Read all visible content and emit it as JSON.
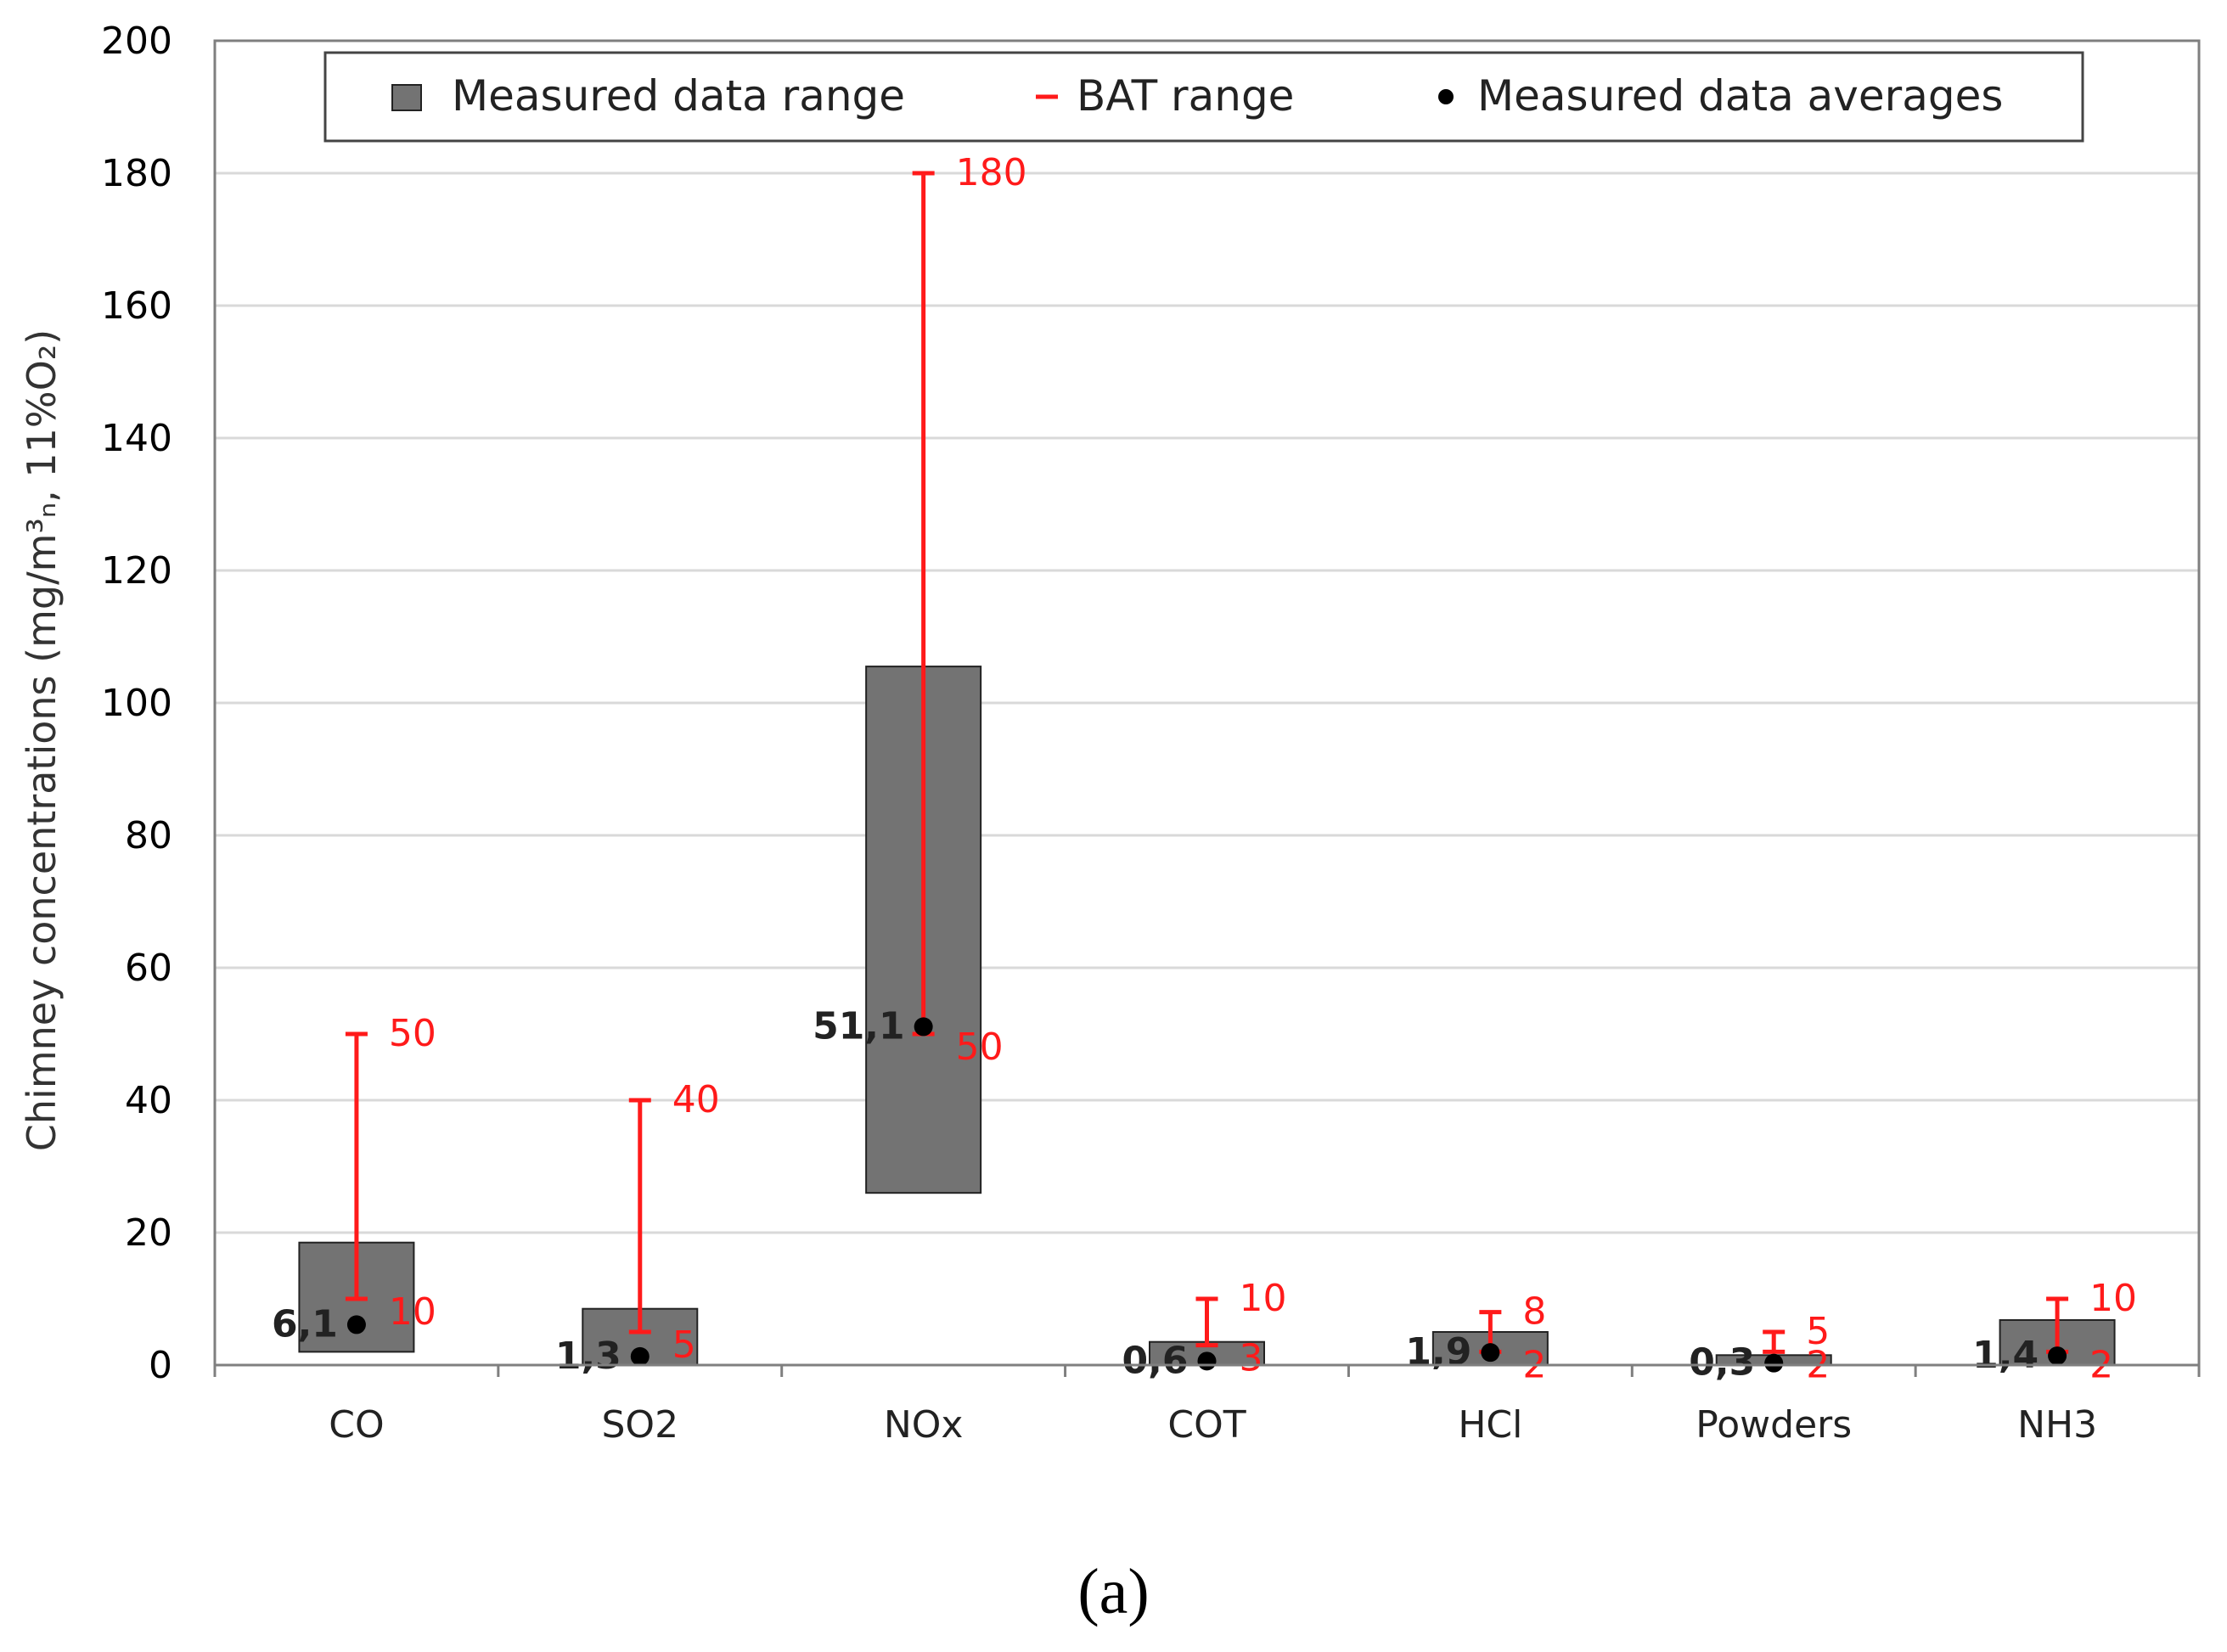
{
  "chart_data": {
    "type": "bar",
    "subtype": "floating-range-with-error-bars",
    "categories": [
      "CO",
      "SO2",
      "NOx",
      "COT",
      "HCl",
      "Powders",
      "NH3"
    ],
    "ylabel": "Chimney concentrations (mg/m³ₙ, 11%O₂)",
    "ylim": [
      0,
      200
    ],
    "yticks": [
      0,
      20,
      40,
      60,
      80,
      100,
      120,
      140,
      160,
      180,
      200
    ],
    "grid": true,
    "legend": {
      "position": "top",
      "entries": [
        {
          "key": "measured_range",
          "label": "Measured data range"
        },
        {
          "key": "bat_range",
          "label": "BAT range"
        },
        {
          "key": "averages",
          "label": "Measured data averages"
        }
      ]
    },
    "series": [
      {
        "name": "Measured data range",
        "low": [
          2,
          0,
          26,
          0,
          0,
          0,
          0
        ],
        "high": [
          18.5,
          8.5,
          105.5,
          3.5,
          5,
          1.5,
          6.8
        ]
      },
      {
        "name": "BAT range",
        "low": [
          10,
          5,
          50,
          3,
          2,
          2,
          2
        ],
        "high": [
          50,
          40,
          180,
          10,
          8,
          5,
          10
        ],
        "low_labels": [
          "10",
          "5",
          "50",
          "3",
          "2",
          "2",
          "2"
        ],
        "high_labels": [
          "50",
          "40",
          "180",
          "10",
          "8",
          "5",
          "10"
        ]
      },
      {
        "name": "Measured data averages",
        "values": [
          6.1,
          1.3,
          51.1,
          0.6,
          1.9,
          0.3,
          1.4
        ],
        "labels": [
          "6,1",
          "1,3",
          "51,1",
          "0,6",
          "1,9",
          "0,3",
          "1,4"
        ]
      }
    ],
    "colors": {
      "range": "#737373",
      "bat": "#ff1a1a",
      "avg": "#000000",
      "grid": "#d9d9d9",
      "axis": "#7f7f7f"
    }
  },
  "caption": "(a)"
}
